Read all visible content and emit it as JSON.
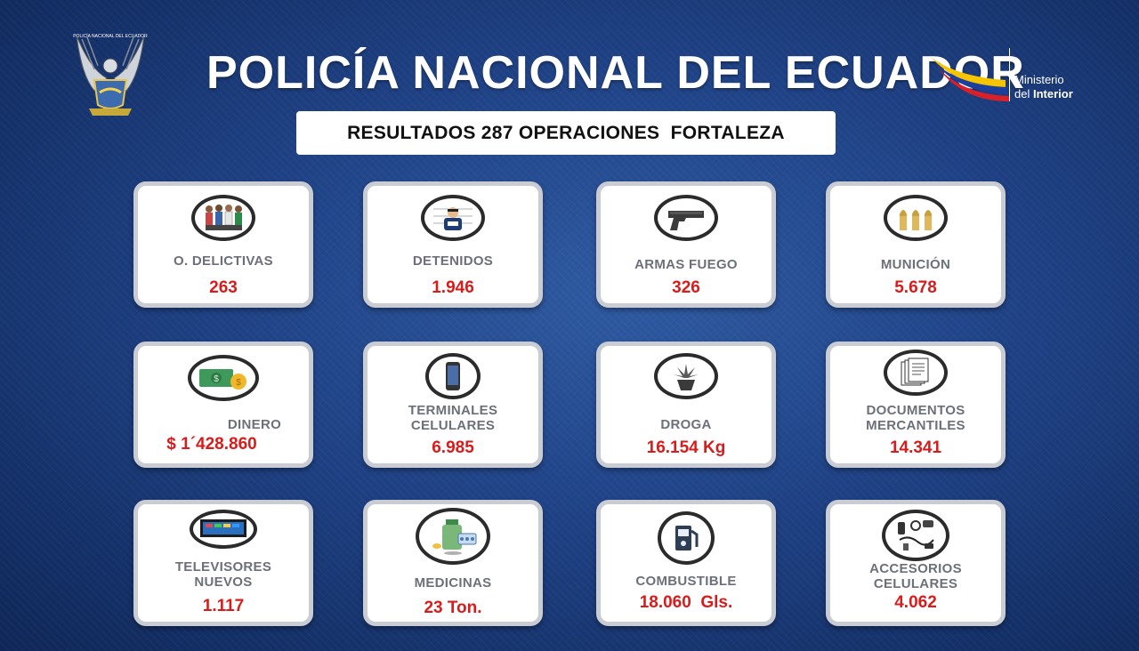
{
  "header": {
    "title": "POLICÍA NACIONAL DEL ECUADOR",
    "subtitle": "RESULTADOS 287 OPERACIONES  FORTALEZA",
    "emblem_text": "POLICÍA NACIONAL DEL ECUADOR",
    "ministry_line1": "Ministerio",
    "ministry_line2_a": "del ",
    "ministry_line2_b": "Interior"
  },
  "colors": {
    "background": "#1f4286",
    "value_red": "#d81c1c",
    "label_gray": "#6c7078",
    "flag_yellow": "#f6c400",
    "flag_blue": "#1a3f9c",
    "flag_red": "#d8202a"
  },
  "cards": [
    {
      "icon": "criminals-icon",
      "label": "O. DELICTIVAS",
      "value": "263"
    },
    {
      "icon": "detainee-icon",
      "label": "DETENIDOS",
      "value": "1.946"
    },
    {
      "icon": "pistol-icon",
      "label": "ARMAS FUEGO",
      "value": "326"
    },
    {
      "icon": "ammunition-icon",
      "label": "MUNICIÓN",
      "value": "5.678"
    },
    {
      "icon": "money-icon",
      "label": "DINERO",
      "value": "$ 1´428.860"
    },
    {
      "icon": "mobile-phone-icon",
      "label": "TERMINALES CELULARES",
      "value": "6.985"
    },
    {
      "icon": "drug-plant-icon",
      "label": "DROGA",
      "value": "16.154 Kg"
    },
    {
      "icon": "documents-icon",
      "label": "DOCUMENTOS MERCANTILES",
      "value": "14.341"
    },
    {
      "icon": "television-icon",
      "label": "TELEVISORES NUEVOS",
      "value": "1.117"
    },
    {
      "icon": "medicine-icon",
      "label": "MEDICINAS",
      "value": "23 Ton."
    },
    {
      "icon": "fuel-pump-icon",
      "label": "COMBUSTIBLE",
      "value": "18.060  Gls."
    },
    {
      "icon": "phone-accessories-icon",
      "label": "ACCESORIOS CELULARES",
      "value": "4.062"
    }
  ]
}
